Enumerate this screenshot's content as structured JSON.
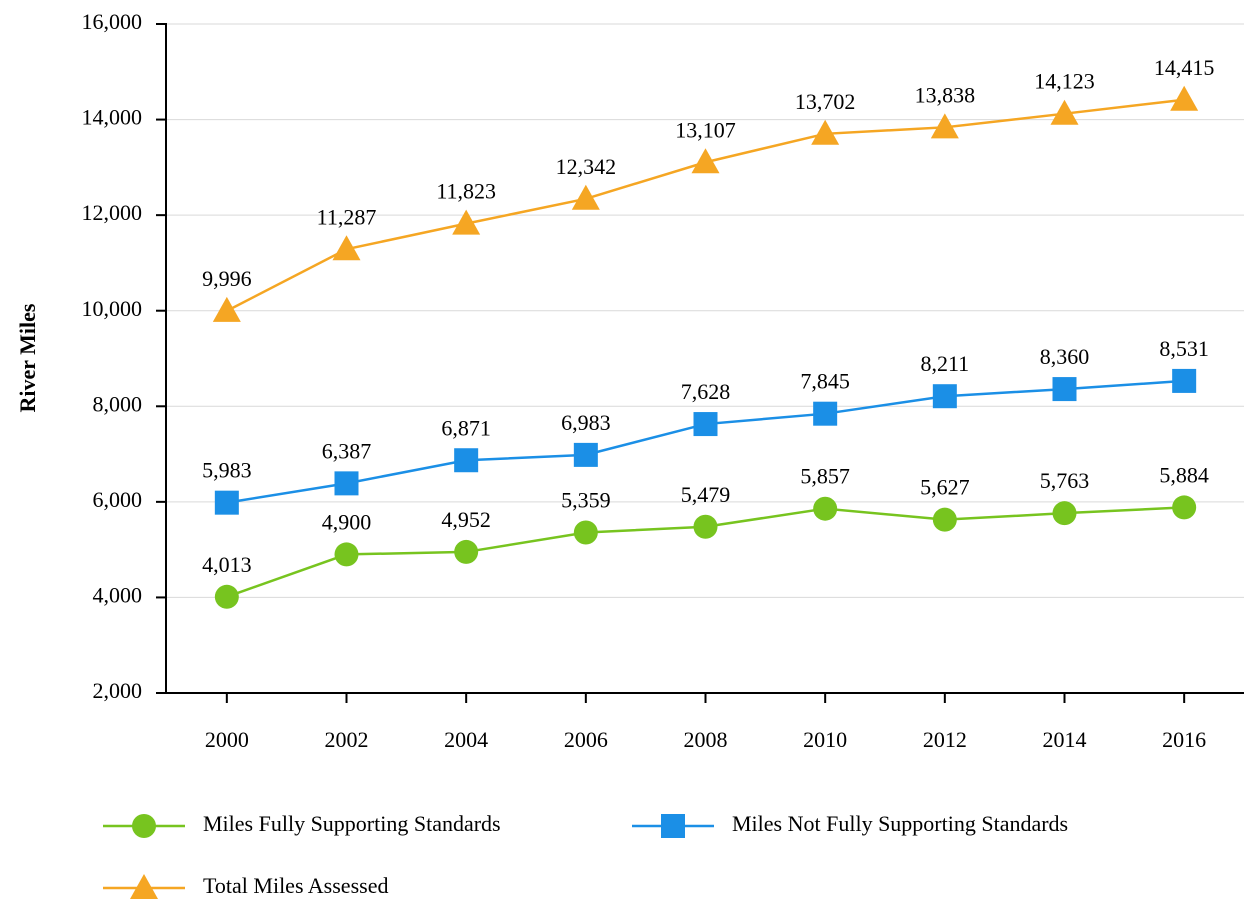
{
  "chart_data": {
    "type": "line",
    "y_label": "River Miles",
    "categories": [
      "2000",
      "2002",
      "2004",
      "2006",
      "2008",
      "2010",
      "2012",
      "2014",
      "2016"
    ],
    "series": [
      {
        "name": "Miles Fully Supporting Standards",
        "color": "#77c41f",
        "marker": "circle",
        "values": [
          4013,
          4900,
          4952,
          5359,
          5479,
          5857,
          5627,
          5763,
          5884
        ],
        "value_labels": [
          "4,013",
          "4,900",
          "4,952",
          "5,359",
          "5,479",
          "5,857",
          "5,627",
          "5,763",
          "5,884"
        ]
      },
      {
        "name": "Miles Not Fully Supporting Standards",
        "color": "#1b8fe6",
        "marker": "square",
        "values": [
          5983,
          6387,
          6871,
          6983,
          7628,
          7845,
          8211,
          8360,
          8531
        ],
        "value_labels": [
          "5,983",
          "6,387",
          "6,871",
          "6,983",
          "7,628",
          "7,845",
          "8,211",
          "8,360",
          "8,531"
        ]
      },
      {
        "name": "Total Miles Assessed",
        "color": "#f5a623",
        "marker": "triangle",
        "values": [
          9996,
          11287,
          11823,
          12342,
          13107,
          13702,
          13838,
          14123,
          14415
        ],
        "value_labels": [
          "9,996",
          "11,287",
          "11,823",
          "12,342",
          "13,107",
          "13,702",
          "13,838",
          "14,123",
          "14,415"
        ]
      }
    ],
    "ylim": [
      2000,
      16000
    ],
    "yticks": [
      {
        "value": 2000,
        "label": "2,000"
      },
      {
        "value": 4000,
        "label": "4,000"
      },
      {
        "value": 6000,
        "label": "6,000"
      },
      {
        "value": 8000,
        "label": "8,000"
      },
      {
        "value": 10000,
        "label": "10,000"
      },
      {
        "value": 12000,
        "label": "12,000"
      },
      {
        "value": 14000,
        "label": "14,000"
      },
      {
        "value": 16000,
        "label": "16,000"
      }
    ],
    "grid": true,
    "legend": "bottom"
  }
}
